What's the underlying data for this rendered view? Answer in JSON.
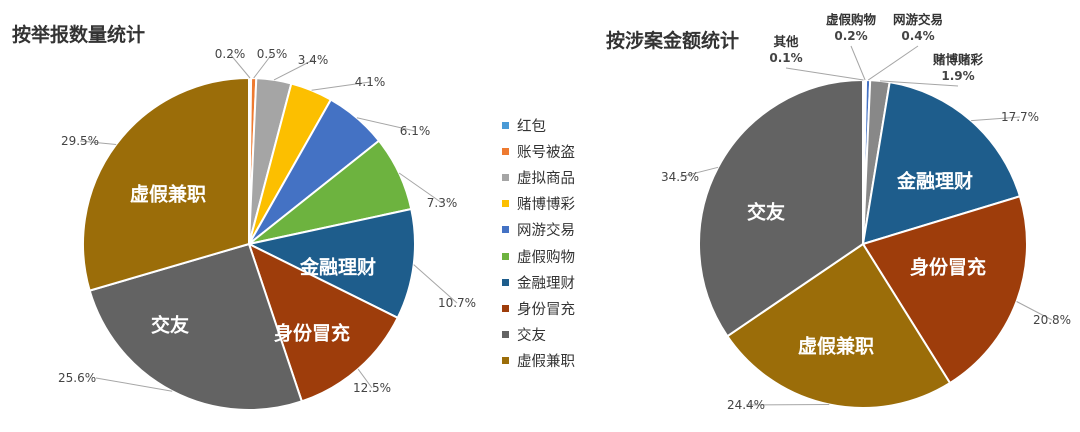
{
  "colors": {
    "红包": "#4a9ad6",
    "账号被盗": "#ee7a30",
    "虚拟商品": "#a5a5a5",
    "赌博博彩": "#fcbf00",
    "网游交易": "#4472c4",
    "虚假购物": "#6db33f",
    "金融理财": "#1e5d8c",
    "身份冒充": "#9e3d0b",
    "交友": "#636363",
    "虚假兼职": "#9b6d09",
    "其他": "#2e78be"
  },
  "chart_data": [
    {
      "type": "pie",
      "title": "按举报数量统计",
      "categories": [
        "红包",
        "账号被盗",
        "虚拟商品",
        "赌博博彩",
        "网游交易",
        "虚假购物",
        "金融理财",
        "身份冒充",
        "交友",
        "虚假兼职"
      ],
      "values": [
        0.2,
        0.5,
        3.4,
        4.1,
        6.1,
        7.3,
        10.7,
        12.5,
        25.6,
        29.5
      ],
      "labels": [
        "0.2%",
        "0.5%",
        "3.4%",
        "4.1%",
        "6.1%",
        "7.3%",
        "10.7%",
        "12.5%",
        "25.6%",
        "29.5%"
      ],
      "legend": [
        "红包",
        "账号被盗",
        "虚拟商品",
        "赌博博彩",
        "网游交易",
        "虚假购物",
        "金融理财",
        "身份冒充",
        "交友",
        "虚假兼职"
      ],
      "legend_position": "right"
    },
    {
      "type": "pie",
      "title": "按涉案金额统计",
      "categories": [
        "其他",
        "虚假购物",
        "网游交易",
        "赌博赌彩",
        "金融理财",
        "身份冒充",
        "虚假兼职",
        "交友"
      ],
      "values": [
        0.1,
        0.2,
        0.4,
        1.9,
        17.7,
        20.8,
        24.4,
        34.5
      ],
      "labels": [
        "0.1%",
        "0.2%",
        "0.4%",
        "1.9%",
        "17.7%",
        "20.8%",
        "24.4%",
        "34.5%"
      ],
      "legend_position": "none"
    }
  ]
}
